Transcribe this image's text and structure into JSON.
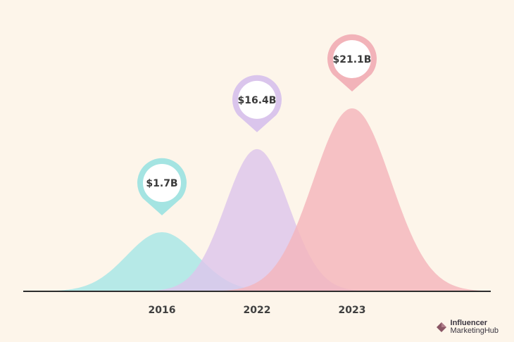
{
  "chart_data": {
    "type": "area",
    "categories": [
      "2016",
      "2022",
      "2023"
    ],
    "values": [
      1.7,
      16.4,
      21.1
    ],
    "value_labels": [
      "$1.7B",
      "$16.4B",
      "$21.1B"
    ],
    "unit": "$B",
    "ylim": [
      0,
      25
    ],
    "grid": false,
    "legend": "none",
    "colors": [
      "#a6e6e6",
      "#ddc6ec",
      "#f4b6bc"
    ],
    "pin_colors": [
      "#a4e4e2",
      "#dac5ec",
      "#f2b3b9"
    ],
    "axis_color": "#2d2d2d"
  },
  "branding": {
    "line1": "Influencer",
    "line2": "MarketingHub",
    "mark_color": "#8a5664"
  }
}
